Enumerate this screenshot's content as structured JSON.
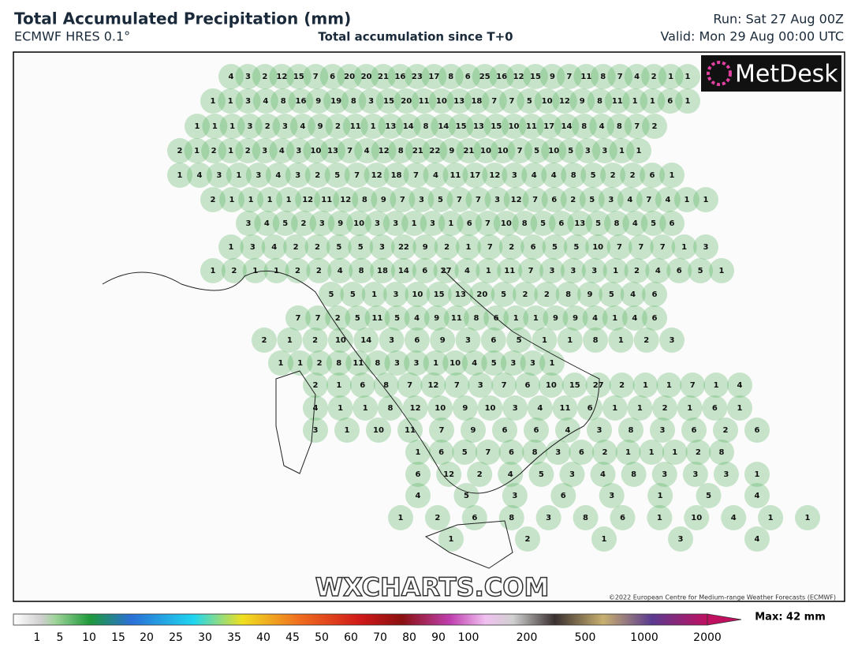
{
  "header": {
    "title": "Total Accumulated Precipitation (mm)",
    "model": "ECMWF HRES 0.1°",
    "subtitle": "Total accumulation since T+0",
    "run": "Run: Sat 27 Aug 00Z",
    "valid": "Valid: Mon 29 Aug 00:00 UTC"
  },
  "logo": "MetDesk",
  "watermark": "WXCHARTS.COM",
  "copyright": "©2022 European Centre for Medium-range Weather Forecasts (ECMWF)",
  "map_labels": [
    [
      4,
      3,
      2,
      12,
      15,
      7,
      6,
      20,
      20,
      21,
      16,
      23,
      17,
      8,
      6,
      25,
      16,
      12,
      15,
      9,
      7,
      11,
      8,
      7,
      4,
      2,
      1,
      1
    ],
    [
      1,
      1,
      3,
      4,
      8,
      16,
      9,
      19,
      8,
      3,
      15,
      20,
      11,
      10,
      13,
      18,
      7,
      7,
      5,
      10,
      12,
      9,
      8,
      11,
      1,
      1,
      6,
      1
    ],
    [
      1,
      1,
      1,
      3,
      2,
      3,
      4,
      9,
      2,
      11,
      1,
      13,
      14,
      8,
      14,
      15,
      13,
      15,
      10,
      11,
      17,
      14,
      8,
      4,
      8,
      7,
      2
    ],
    [
      2,
      1,
      2,
      1,
      2,
      3,
      4,
      3,
      10,
      13,
      7,
      4,
      12,
      8,
      21,
      22,
      9,
      21,
      10,
      10,
      7,
      5,
      10,
      5,
      3,
      3,
      1,
      1
    ],
    [
      1,
      4,
      3,
      1,
      3,
      4,
      3,
      2,
      5,
      7,
      12,
      18,
      7,
      4,
      11,
      17,
      12,
      3,
      4,
      4,
      8,
      5,
      2,
      2,
      6,
      1
    ],
    [
      2,
      1,
      1,
      1,
      1,
      12,
      11,
      12,
      8,
      9,
      7,
      3,
      5,
      7,
      7,
      3,
      12,
      7,
      6,
      2,
      5,
      3,
      4,
      7,
      4,
      1,
      1
    ],
    [
      3,
      4,
      5,
      2,
      3,
      9,
      10,
      3,
      3,
      1,
      3,
      1,
      6,
      7,
      10,
      8,
      5,
      6,
      13,
      5,
      8,
      4,
      5,
      6
    ],
    [
      1,
      3,
      4,
      2,
      2,
      5,
      5,
      3,
      22,
      9,
      2,
      1,
      7,
      2,
      6,
      5,
      5,
      10,
      7,
      7,
      7,
      1,
      3
    ],
    [
      1,
      2,
      1,
      1,
      2,
      2,
      4,
      8,
      18,
      14,
      6,
      27,
      4,
      1,
      11,
      7,
      3,
      3,
      3,
      1,
      2,
      4,
      6,
      5,
      1
    ],
    [
      5,
      5,
      1,
      3,
      10,
      15,
      13,
      20,
      5,
      2,
      2,
      8,
      9,
      5,
      4,
      6
    ],
    [
      7,
      7,
      2,
      5,
      11,
      5,
      4,
      9,
      11,
      8,
      6,
      1,
      1,
      9,
      9,
      4,
      1,
      4,
      6
    ],
    [
      2,
      1,
      2,
      10,
      14,
      3,
      6,
      9,
      3,
      6,
      5,
      1,
      1,
      8,
      1,
      2,
      3
    ],
    [
      1,
      1,
      2,
      8,
      11,
      8,
      3,
      3,
      1,
      10,
      4,
      5,
      3,
      3,
      1
    ],
    [
      2,
      1,
      6,
      8,
      7,
      12,
      7,
      3,
      7,
      6,
      10,
      15,
      27,
      2,
      1,
      1,
      7,
      1,
      4
    ],
    [
      4,
      1,
      1,
      8,
      12,
      10,
      9,
      10,
      3,
      4,
      11,
      6,
      1,
      1,
      2,
      1,
      6,
      1
    ],
    [
      3,
      1,
      10,
      11,
      7,
      9,
      6,
      6,
      4,
      3,
      8,
      3,
      6,
      2,
      6
    ],
    [
      1,
      6,
      5,
      7,
      6,
      8,
      3,
      6,
      2,
      1,
      1,
      1,
      2,
      8
    ],
    [
      6,
      12,
      2,
      4,
      5,
      3,
      4,
      8,
      3,
      3,
      3,
      1
    ],
    [
      4,
      5,
      3,
      6,
      3,
      1,
      5,
      4
    ],
    [
      1,
      2,
      6,
      8,
      3,
      8,
      6,
      1,
      10,
      4,
      1,
      1
    ],
    [
      1,
      2,
      1,
      3,
      4
    ]
  ],
  "colorbar": {
    "labels": [
      1,
      5,
      10,
      15,
      20,
      25,
      30,
      35,
      40,
      45,
      50,
      60,
      70,
      80,
      90,
      100,
      200,
      500,
      1000,
      2000
    ],
    "max_label": "Max: 42 mm"
  }
}
